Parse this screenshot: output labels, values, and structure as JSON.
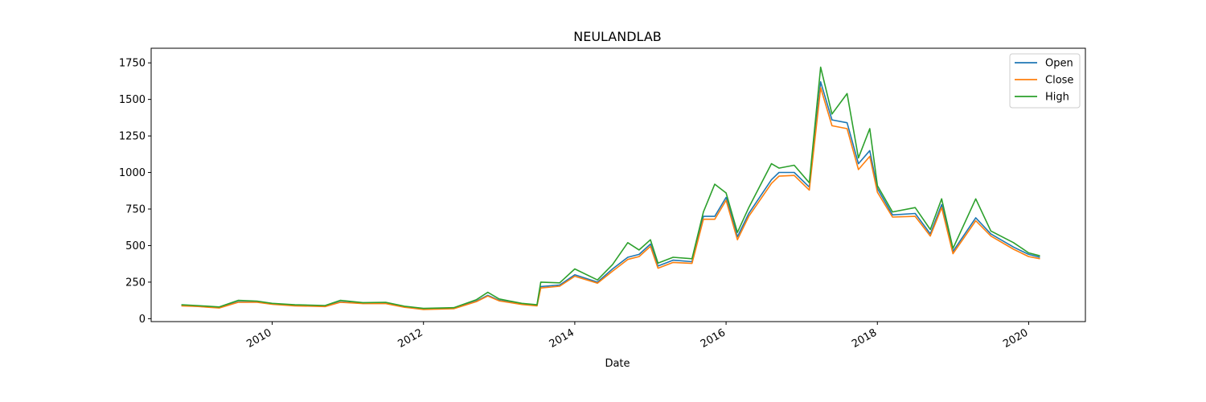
{
  "chart_data": {
    "type": "line",
    "title": "NEULANDLAB",
    "xlabel": "Date",
    "ylabel": "",
    "xlim": [
      2008.4,
      2020.75
    ],
    "ylim": [
      -20,
      1850
    ],
    "x_ticks": [
      2010,
      2012,
      2014,
      2016,
      2018,
      2020
    ],
    "x_tick_labels": [
      "2010",
      "2012",
      "2014",
      "2016",
      "2018",
      "2020"
    ],
    "y_ticks": [
      0,
      250,
      500,
      750,
      1000,
      1250,
      1500,
      1750
    ],
    "y_tick_labels": [
      "0",
      "250",
      "500",
      "750",
      "1000",
      "1250",
      "1500",
      "1750"
    ],
    "legend_position": "top-right",
    "grid": false,
    "series": [
      {
        "name": "Open",
        "color": "#1f77b4",
        "points": [
          [
            2008.8,
            90
          ],
          [
            2009.0,
            85
          ],
          [
            2009.3,
            75
          ],
          [
            2009.55,
            115
          ],
          [
            2009.8,
            115
          ],
          [
            2010.0,
            100
          ],
          [
            2010.3,
            90
          ],
          [
            2010.7,
            85
          ],
          [
            2010.9,
            115
          ],
          [
            2011.2,
            105
          ],
          [
            2011.5,
            105
          ],
          [
            2011.75,
            80
          ],
          [
            2012.0,
            65
          ],
          [
            2012.4,
            70
          ],
          [
            2012.7,
            120
          ],
          [
            2012.85,
            160
          ],
          [
            2013.0,
            125
          ],
          [
            2013.3,
            100
          ],
          [
            2013.5,
            90
          ],
          [
            2013.55,
            220
          ],
          [
            2013.8,
            230
          ],
          [
            2014.0,
            300
          ],
          [
            2014.3,
            250
          ],
          [
            2014.5,
            340
          ],
          [
            2014.7,
            420
          ],
          [
            2014.85,
            440
          ],
          [
            2015.0,
            510
          ],
          [
            2015.1,
            360
          ],
          [
            2015.3,
            400
          ],
          [
            2015.55,
            390
          ],
          [
            2015.7,
            700
          ],
          [
            2015.85,
            700
          ],
          [
            2016.0,
            830
          ],
          [
            2016.15,
            560
          ],
          [
            2016.3,
            720
          ],
          [
            2016.6,
            950
          ],
          [
            2016.7,
            1000
          ],
          [
            2016.9,
            1000
          ],
          [
            2017.1,
            900
          ],
          [
            2017.25,
            1620
          ],
          [
            2017.4,
            1360
          ],
          [
            2017.6,
            1340
          ],
          [
            2017.75,
            1060
          ],
          [
            2017.9,
            1150
          ],
          [
            2018.0,
            890
          ],
          [
            2018.2,
            710
          ],
          [
            2018.5,
            720
          ],
          [
            2018.7,
            580
          ],
          [
            2018.85,
            780
          ],
          [
            2019.0,
            460
          ],
          [
            2019.3,
            690
          ],
          [
            2019.5,
            580
          ],
          [
            2019.8,
            490
          ],
          [
            2020.0,
            440
          ],
          [
            2020.15,
            420
          ]
        ]
      },
      {
        "name": "Close",
        "color": "#ff7f0e",
        "points": [
          [
            2008.8,
            88
          ],
          [
            2009.0,
            84
          ],
          [
            2009.3,
            73
          ],
          [
            2009.55,
            112
          ],
          [
            2009.8,
            112
          ],
          [
            2010.0,
            98
          ],
          [
            2010.3,
            88
          ],
          [
            2010.7,
            83
          ],
          [
            2010.9,
            112
          ],
          [
            2011.2,
            103
          ],
          [
            2011.5,
            103
          ],
          [
            2011.75,
            78
          ],
          [
            2012.0,
            63
          ],
          [
            2012.4,
            68
          ],
          [
            2012.7,
            117
          ],
          [
            2012.85,
            155
          ],
          [
            2013.0,
            122
          ],
          [
            2013.3,
            97
          ],
          [
            2013.5,
            88
          ],
          [
            2013.55,
            210
          ],
          [
            2013.8,
            222
          ],
          [
            2014.0,
            290
          ],
          [
            2014.3,
            243
          ],
          [
            2014.5,
            325
          ],
          [
            2014.7,
            405
          ],
          [
            2014.85,
            425
          ],
          [
            2015.0,
            495
          ],
          [
            2015.1,
            345
          ],
          [
            2015.3,
            385
          ],
          [
            2015.55,
            378
          ],
          [
            2015.7,
            680
          ],
          [
            2015.85,
            680
          ],
          [
            2016.0,
            810
          ],
          [
            2016.15,
            540
          ],
          [
            2016.3,
            700
          ],
          [
            2016.6,
            925
          ],
          [
            2016.7,
            975
          ],
          [
            2016.9,
            980
          ],
          [
            2017.1,
            880
          ],
          [
            2017.25,
            1580
          ],
          [
            2017.4,
            1320
          ],
          [
            2017.6,
            1300
          ],
          [
            2017.75,
            1020
          ],
          [
            2017.9,
            1110
          ],
          [
            2018.0,
            865
          ],
          [
            2018.2,
            695
          ],
          [
            2018.5,
            700
          ],
          [
            2018.7,
            565
          ],
          [
            2018.85,
            760
          ],
          [
            2019.0,
            445
          ],
          [
            2019.3,
            670
          ],
          [
            2019.5,
            565
          ],
          [
            2019.8,
            475
          ],
          [
            2020.0,
            425
          ],
          [
            2020.15,
            410
          ]
        ]
      },
      {
        "name": "High",
        "color": "#2ca02c",
        "points": [
          [
            2008.8,
            95
          ],
          [
            2009.0,
            90
          ],
          [
            2009.3,
            80
          ],
          [
            2009.55,
            125
          ],
          [
            2009.8,
            120
          ],
          [
            2010.0,
            105
          ],
          [
            2010.3,
            95
          ],
          [
            2010.7,
            90
          ],
          [
            2010.9,
            125
          ],
          [
            2011.2,
            110
          ],
          [
            2011.5,
            112
          ],
          [
            2011.75,
            85
          ],
          [
            2012.0,
            70
          ],
          [
            2012.4,
            75
          ],
          [
            2012.7,
            130
          ],
          [
            2012.85,
            180
          ],
          [
            2013.0,
            135
          ],
          [
            2013.3,
            105
          ],
          [
            2013.5,
            95
          ],
          [
            2013.55,
            250
          ],
          [
            2013.8,
            245
          ],
          [
            2014.0,
            340
          ],
          [
            2014.3,
            265
          ],
          [
            2014.5,
            370
          ],
          [
            2014.7,
            520
          ],
          [
            2014.85,
            470
          ],
          [
            2015.0,
            540
          ],
          [
            2015.1,
            380
          ],
          [
            2015.3,
            420
          ],
          [
            2015.55,
            410
          ],
          [
            2015.7,
            730
          ],
          [
            2015.85,
            920
          ],
          [
            2016.0,
            860
          ],
          [
            2016.15,
            590
          ],
          [
            2016.3,
            760
          ],
          [
            2016.6,
            1060
          ],
          [
            2016.7,
            1030
          ],
          [
            2016.9,
            1050
          ],
          [
            2017.1,
            930
          ],
          [
            2017.25,
            1720
          ],
          [
            2017.4,
            1400
          ],
          [
            2017.6,
            1540
          ],
          [
            2017.75,
            1100
          ],
          [
            2017.9,
            1300
          ],
          [
            2018.0,
            910
          ],
          [
            2018.2,
            730
          ],
          [
            2018.5,
            760
          ],
          [
            2018.7,
            610
          ],
          [
            2018.85,
            820
          ],
          [
            2019.0,
            480
          ],
          [
            2019.3,
            820
          ],
          [
            2019.5,
            600
          ],
          [
            2019.8,
            520
          ],
          [
            2020.0,
            450
          ],
          [
            2020.15,
            430
          ]
        ]
      }
    ]
  }
}
